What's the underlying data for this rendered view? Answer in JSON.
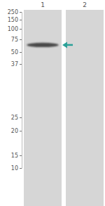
{
  "chart_data": {
    "type": "blot",
    "categories": [
      "1",
      "2"
    ],
    "values": [
      64,
      null
    ],
    "color": "#4a4a4a",
    "ylim": [
      250,
      10
    ],
    "yticks": [
      250,
      150,
      100,
      75,
      50,
      37,
      25,
      20,
      15,
      10
    ]
  }
}
